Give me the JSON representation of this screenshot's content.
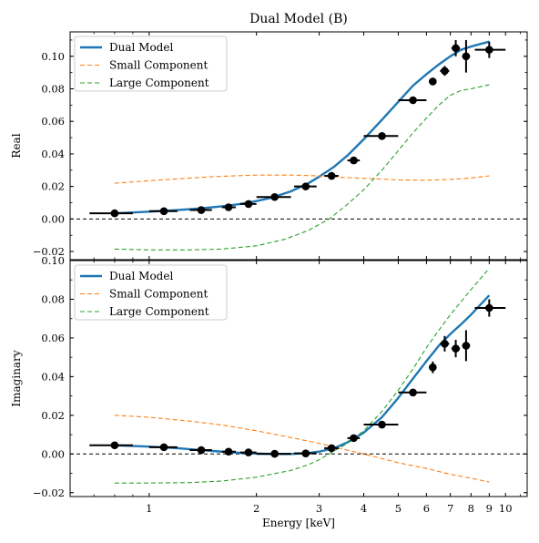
{
  "figure": {
    "title": "Dual Model (B)",
    "xlabel": "Energy [keV]"
  },
  "colors": {
    "dual": "#1f77b4",
    "small": "#ff7f0e",
    "large": "#2ca02c",
    "data": "#000000"
  },
  "chart_data": [
    {
      "type": "line",
      "panel": "top",
      "ylabel": "Real",
      "x_scale": "log",
      "xlim": [
        0.6,
        11.5
      ],
      "ylim": [
        -0.025,
        0.115
      ],
      "x_ticks": [
        1,
        2,
        3,
        4,
        5,
        6,
        7,
        8,
        9,
        10
      ],
      "x_tick_labels": [
        "1",
        "2",
        "3",
        "4",
        "5",
        "6",
        "7",
        "8",
        "9",
        "10"
      ],
      "y_ticks": [
        -0.02,
        0.0,
        0.02,
        0.04,
        0.06,
        0.08,
        0.1
      ],
      "y_tick_labels": [
        "−0.02",
        "0.00",
        "0.02",
        "0.04",
        "0.06",
        "0.08",
        "0.10"
      ],
      "legend": {
        "position": "top-left",
        "entries": [
          "Dual Model",
          "Small Component",
          "Large Component"
        ]
      },
      "zero_line": true,
      "series": [
        {
          "name": "Dual Model",
          "style": "solid",
          "color_key": "dual",
          "x": [
            0.8,
            0.9,
            1.0,
            1.2,
            1.4,
            1.6,
            1.8,
            2.0,
            2.2,
            2.5,
            2.8,
            3.0,
            3.3,
            3.6,
            4.0,
            4.5,
            5.0,
            5.5,
            6.0,
            6.5,
            7.0,
            7.5,
            8.0,
            9.0
          ],
          "y": [
            0.0035,
            0.004,
            0.0045,
            0.0055,
            0.0065,
            0.0078,
            0.0092,
            0.011,
            0.013,
            0.017,
            0.022,
            0.026,
            0.032,
            0.039,
            0.049,
            0.061,
            0.072,
            0.082,
            0.089,
            0.095,
            0.1,
            0.104,
            0.106,
            0.109
          ]
        },
        {
          "name": "Small Component",
          "style": "dashed",
          "color_key": "small",
          "x": [
            0.8,
            1.0,
            1.5,
            2.0,
            2.5,
            3.0,
            3.5,
            4.0,
            5.0,
            6.0,
            7.0,
            8.0,
            9.0
          ],
          "y": [
            0.022,
            0.0235,
            0.026,
            0.027,
            0.027,
            0.0265,
            0.0255,
            0.025,
            0.024,
            0.0238,
            0.0243,
            0.0252,
            0.0265
          ]
        },
        {
          "name": "Large Component",
          "style": "dashed",
          "color_key": "large",
          "x": [
            0.8,
            1.0,
            1.3,
            1.6,
            2.0,
            2.4,
            2.8,
            3.2,
            3.6,
            4.0,
            4.5,
            5.0,
            5.5,
            6.0,
            6.5,
            7.0,
            7.5,
            8.0,
            9.0
          ],
          "y": [
            -0.0185,
            -0.019,
            -0.019,
            -0.0185,
            -0.0165,
            -0.0125,
            -0.007,
            0.0,
            0.009,
            0.018,
            0.03,
            0.042,
            0.053,
            0.062,
            0.07,
            0.076,
            0.079,
            0.08,
            0.0825
          ]
        },
        {
          "name": "Data",
          "style": "errorbar",
          "color_key": "data",
          "points": [
            {
              "x": 0.8,
              "y": 0.0035,
              "xlo": 0.68,
              "xhi": 0.9,
              "yerr": 0.0015
            },
            {
              "x": 1.1,
              "y": 0.0048,
              "xlo": 1.0,
              "xhi": 1.2,
              "yerr": 0.0015
            },
            {
              "x": 1.4,
              "y": 0.0055,
              "xlo": 1.3,
              "xhi": 1.5,
              "yerr": 0.0015
            },
            {
              "x": 1.67,
              "y": 0.0072,
              "xlo": 1.6,
              "xhi": 1.75,
              "yerr": 0.0015
            },
            {
              "x": 1.9,
              "y": 0.0092,
              "xlo": 1.8,
              "xhi": 2.0,
              "yerr": 0.0015
            },
            {
              "x": 2.25,
              "y": 0.0135,
              "xlo": 2.0,
              "xhi": 2.5,
              "yerr": 0.0015
            },
            {
              "x": 2.75,
              "y": 0.02,
              "xlo": 2.55,
              "xhi": 2.95,
              "yerr": 0.0015
            },
            {
              "x": 3.25,
              "y": 0.0265,
              "xlo": 3.1,
              "xhi": 3.4,
              "yerr": 0.0015
            },
            {
              "x": 3.75,
              "y": 0.036,
              "xlo": 3.6,
              "xhi": 3.9,
              "yerr": 0.0015
            },
            {
              "x": 4.5,
              "y": 0.051,
              "xlo": 4.0,
              "xhi": 5.0,
              "yerr": 0.0015
            },
            {
              "x": 5.5,
              "y": 0.073,
              "xlo": 5.0,
              "xhi": 6.0,
              "yerr": 0.002
            },
            {
              "x": 6.25,
              "y": 0.0845,
              "xlo": 6.1,
              "xhi": 6.4,
              "yerr": 0.002
            },
            {
              "x": 6.75,
              "y": 0.091,
              "xlo": 6.55,
              "xhi": 6.95,
              "yerr": 0.003
            },
            {
              "x": 7.25,
              "y": 0.105,
              "xlo": 7.05,
              "xhi": 7.45,
              "yerr": 0.005
            },
            {
              "x": 7.75,
              "y": 0.1,
              "xlo": 7.55,
              "xhi": 7.95,
              "yerr": 0.01
            },
            {
              "x": 9.0,
              "y": 0.104,
              "xlo": 8.2,
              "xhi": 10.0,
              "yerr": 0.005
            }
          ]
        }
      ]
    },
    {
      "type": "line",
      "panel": "bottom",
      "ylabel": "Imaginary",
      "x_scale": "log",
      "xlim": [
        0.6,
        11.5
      ],
      "ylim": [
        -0.022,
        0.1
      ],
      "x_ticks": [
        1,
        2,
        3,
        4,
        5,
        6,
        7,
        8,
        9,
        10
      ],
      "x_tick_labels": [
        "1",
        "2",
        "3",
        "4",
        "5",
        "6",
        "7",
        "8",
        "9",
        "10"
      ],
      "y_ticks": [
        -0.02,
        0.0,
        0.02,
        0.04,
        0.06,
        0.08,
        0.1
      ],
      "y_tick_labels": [
        "−0.02",
        "0.00",
        "0.02",
        "0.04",
        "0.06",
        "0.08",
        "0.10"
      ],
      "legend": {
        "position": "top-left",
        "entries": [
          "Dual Model",
          "Small Component",
          "Large Component"
        ]
      },
      "zero_line": true,
      "series": [
        {
          "name": "Dual Model",
          "style": "solid",
          "color_key": "dual",
          "x": [
            0.8,
            1.0,
            1.2,
            1.4,
            1.6,
            1.8,
            2.0,
            2.2,
            2.5,
            2.8,
            3.0,
            3.3,
            3.6,
            4.0,
            4.5,
            5.0,
            5.5,
            6.0,
            6.5,
            7.0,
            7.5,
            8.0,
            9.0
          ],
          "y": [
            0.0045,
            0.0038,
            0.003,
            0.002,
            0.0012,
            0.0006,
            0.0002,
            0.0,
            0.0,
            0.0005,
            0.0012,
            0.003,
            0.006,
            0.011,
            0.019,
            0.029,
            0.039,
            0.048,
            0.056,
            0.062,
            0.067,
            0.072,
            0.082
          ]
        },
        {
          "name": "Small Component",
          "style": "dashed",
          "color_key": "small",
          "x": [
            0.8,
            1.0,
            1.3,
            1.6,
            2.0,
            2.5,
            3.0,
            3.5,
            4.0,
            5.0,
            6.0,
            7.0,
            8.0,
            9.0
          ],
          "y": [
            0.02,
            0.019,
            0.017,
            0.015,
            0.012,
            0.0085,
            0.0055,
            0.0025,
            0.0,
            -0.0045,
            -0.0075,
            -0.0105,
            -0.0125,
            -0.0145
          ]
        },
        {
          "name": "Large Component",
          "style": "dashed",
          "color_key": "large",
          "x": [
            0.8,
            1.0,
            1.3,
            1.6,
            2.0,
            2.5,
            2.8,
            3.0,
            3.3,
            3.6,
            4.0,
            4.5,
            5.0,
            5.5,
            6.0,
            6.5,
            7.0,
            8.0,
            9.0
          ],
          "y": [
            -0.015,
            -0.015,
            -0.0148,
            -0.014,
            -0.012,
            -0.0085,
            -0.0055,
            -0.003,
            0.0015,
            0.0055,
            0.012,
            0.022,
            0.033,
            0.044,
            0.055,
            0.064,
            0.072,
            0.085,
            0.096
          ]
        },
        {
          "name": "Data",
          "style": "errorbar",
          "color_key": "data",
          "points": [
            {
              "x": 0.8,
              "y": 0.0045,
              "xlo": 0.68,
              "xhi": 0.9,
              "yerr": 0.0012
            },
            {
              "x": 1.1,
              "y": 0.0035,
              "xlo": 1.0,
              "xhi": 1.2,
              "yerr": 0.0012
            },
            {
              "x": 1.4,
              "y": 0.002,
              "xlo": 1.3,
              "xhi": 1.5,
              "yerr": 0.0012
            },
            {
              "x": 1.67,
              "y": 0.0012,
              "xlo": 1.6,
              "xhi": 1.75,
              "yerr": 0.0012
            },
            {
              "x": 1.9,
              "y": 0.0008,
              "xlo": 1.8,
              "xhi": 2.0,
              "yerr": 0.0012
            },
            {
              "x": 2.25,
              "y": 0.0001,
              "xlo": 2.0,
              "xhi": 2.5,
              "yerr": 0.0012
            },
            {
              "x": 2.75,
              "y": 0.0003,
              "xlo": 2.55,
              "xhi": 2.95,
              "yerr": 0.0012
            },
            {
              "x": 3.25,
              "y": 0.003,
              "xlo": 3.1,
              "xhi": 3.4,
              "yerr": 0.0012
            },
            {
              "x": 3.75,
              "y": 0.0082,
              "xlo": 3.6,
              "xhi": 3.9,
              "yerr": 0.0012
            },
            {
              "x": 4.5,
              "y": 0.0152,
              "xlo": 4.0,
              "xhi": 5.0,
              "yerr": 0.0015
            },
            {
              "x": 5.5,
              "y": 0.0318,
              "xlo": 5.0,
              "xhi": 6.0,
              "yerr": 0.0015
            },
            {
              "x": 6.25,
              "y": 0.0448,
              "xlo": 6.1,
              "xhi": 6.4,
              "yerr": 0.003
            },
            {
              "x": 6.75,
              "y": 0.057,
              "xlo": 6.55,
              "xhi": 6.95,
              "yerr": 0.004
            },
            {
              "x": 7.25,
              "y": 0.0545,
              "xlo": 7.05,
              "xhi": 7.45,
              "yerr": 0.0045
            },
            {
              "x": 7.75,
              "y": 0.056,
              "xlo": 7.55,
              "xhi": 7.95,
              "yerr": 0.008
            },
            {
              "x": 9.0,
              "y": 0.0755,
              "xlo": 8.2,
              "xhi": 10.0,
              "yerr": 0.0045
            }
          ]
        }
      ]
    }
  ]
}
